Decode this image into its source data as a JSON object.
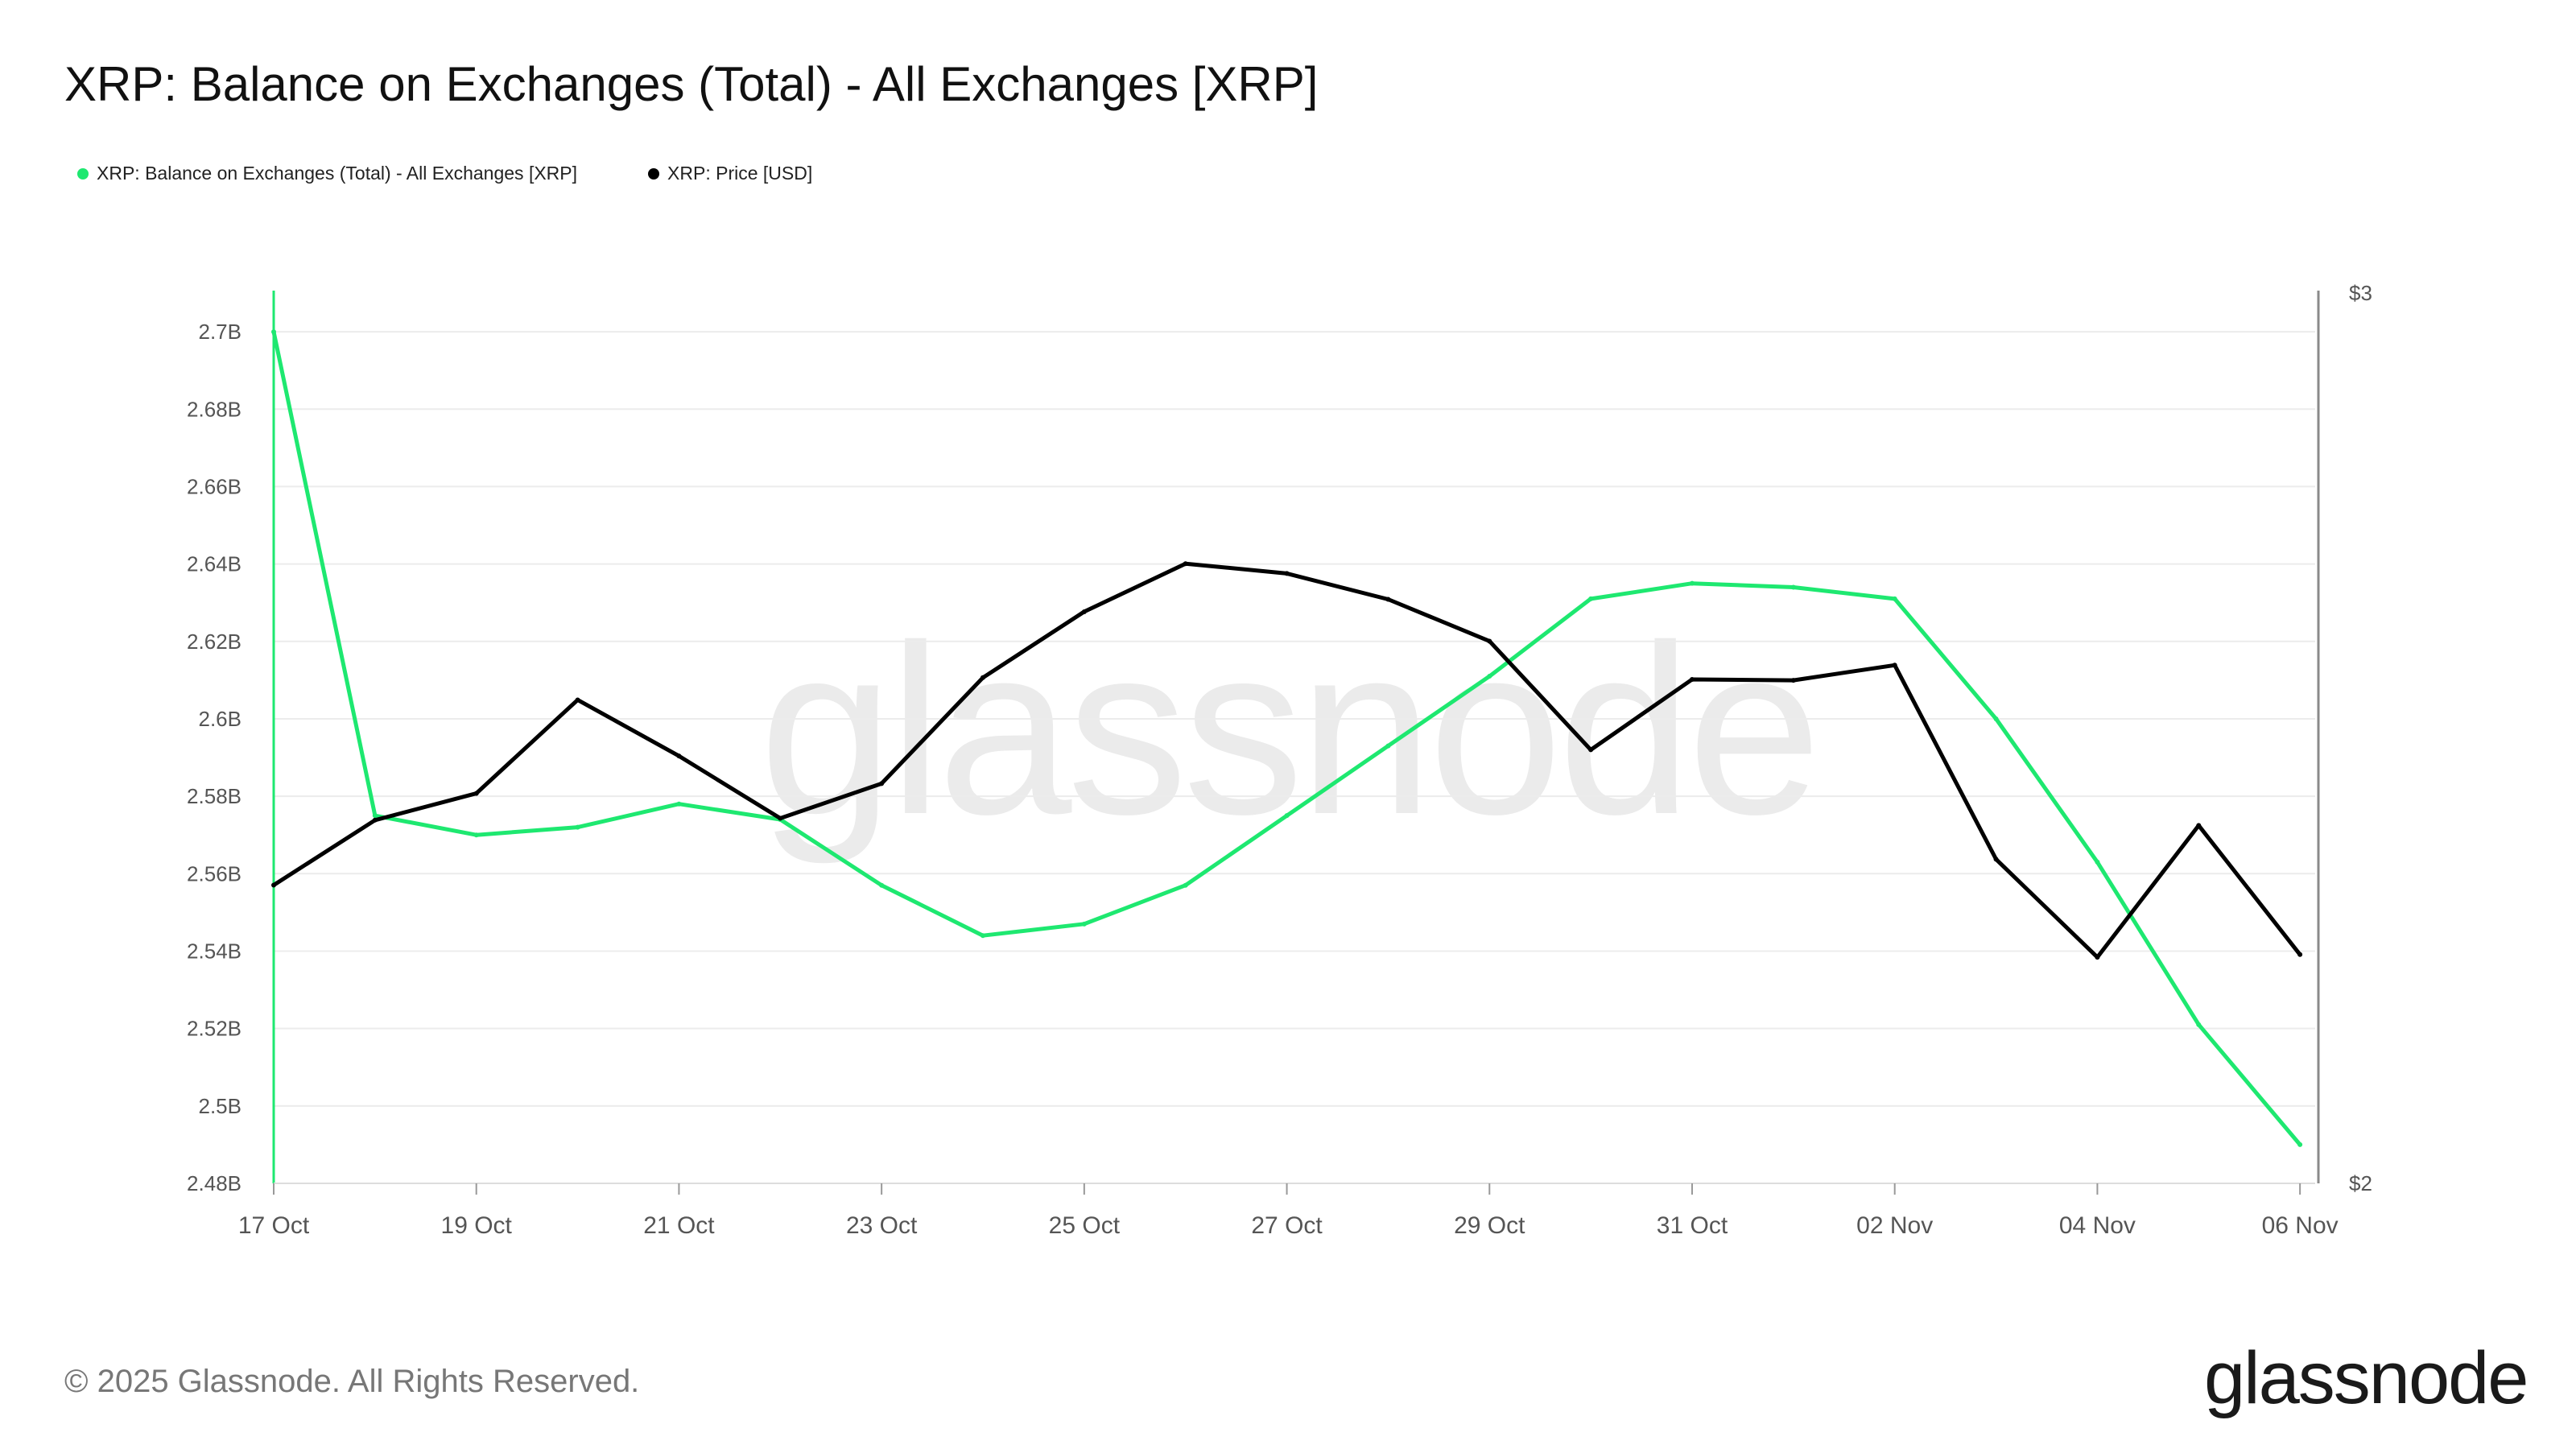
{
  "title": "XRP: Balance on Exchanges (Total) - All Exchanges [XRP]",
  "legend": [
    {
      "label": "XRP: Balance on Exchanges (Total) - All Exchanges [XRP]",
      "color": "#1ee870"
    },
    {
      "label": "XRP: Price [USD]",
      "color": "#000000"
    }
  ],
  "footer": "© 2025 Glassnode. All Rights Reserved.",
  "brand": "glassnode",
  "watermark": "glassnode",
  "chart_data": {
    "type": "line",
    "title": "XRP: Balance on Exchanges (Total) - All Exchanges [XRP]",
    "x": [
      "17 Oct",
      "18 Oct",
      "19 Oct",
      "20 Oct",
      "21 Oct",
      "22 Oct",
      "23 Oct",
      "24 Oct",
      "25 Oct",
      "26 Oct",
      "27 Oct",
      "28 Oct",
      "29 Oct",
      "30 Oct",
      "31 Oct",
      "01 Nov",
      "02 Nov",
      "03 Nov",
      "04 Nov",
      "05 Nov",
      "06 Nov"
    ],
    "x_tick_labels": [
      "17 Oct",
      "19 Oct",
      "21 Oct",
      "23 Oct",
      "25 Oct",
      "27 Oct",
      "29 Oct",
      "31 Oct",
      "02 Nov",
      "04 Nov",
      "06 Nov"
    ],
    "left_axis": {
      "ylim": [
        2.48,
        2.71
      ],
      "ticks": [
        2.48,
        2.5,
        2.52,
        2.54,
        2.56,
        2.58,
        2.6,
        2.62,
        2.64,
        2.66,
        2.68,
        2.7
      ],
      "tick_labels": [
        "2.48B",
        "2.5B",
        "2.52B",
        "2.54B",
        "2.56B",
        "2.58B",
        "2.6B",
        "2.62B",
        "2.64B",
        "2.66B",
        "2.68B",
        "2.7B"
      ]
    },
    "right_axis": {
      "ylim": [
        2,
        3
      ],
      "ticks": [
        2,
        3
      ],
      "tick_labels": [
        "$2",
        "$3"
      ]
    },
    "grid": true,
    "legend_position": "top-left",
    "series": [
      {
        "name": "XRP: Balance on Exchanges (Total) - All Exchanges [XRP]",
        "axis": "left",
        "color": "#1ee870",
        "values": [
          2.7,
          2.575,
          2.57,
          2.572,
          2.578,
          2.574,
          2.557,
          2.544,
          2.547,
          2.557,
          2.575,
          2.593,
          2.611,
          2.631,
          2.635,
          2.634,
          2.631,
          2.6,
          2.563,
          2.521,
          2.49
        ]
      },
      {
        "name": "XRP: Price [USD]",
        "axis": "right",
        "color": "#000000",
        "values": [
          2.335,
          2.408,
          2.438,
          2.543,
          2.48,
          2.41,
          2.449,
          2.568,
          2.642,
          2.696,
          2.685,
          2.656,
          2.609,
          2.487,
          2.566,
          2.565,
          2.582,
          2.364,
          2.254,
          2.402,
          2.257
        ]
      }
    ]
  }
}
